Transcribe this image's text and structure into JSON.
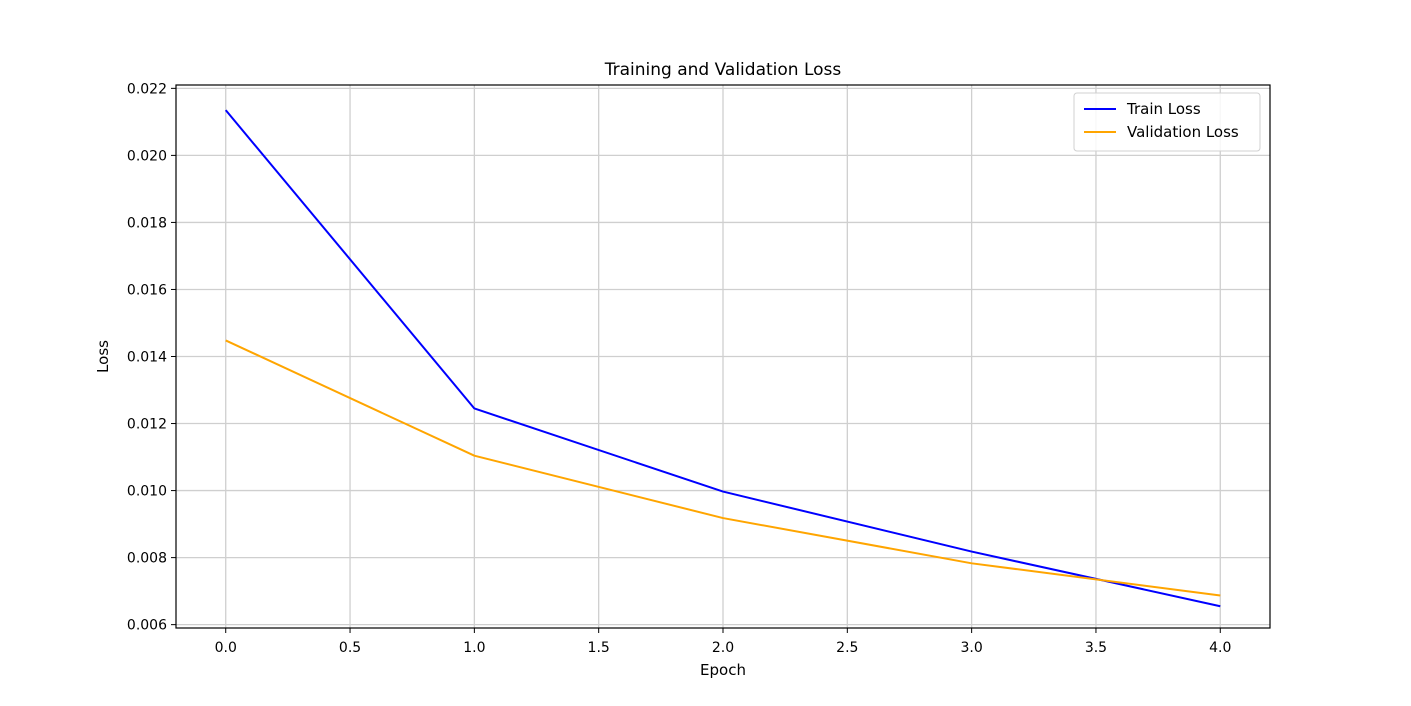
{
  "chart_data": {
    "type": "line",
    "title": "Training and Validation Loss",
    "xlabel": "Epoch",
    "ylabel": "Loss",
    "x": [
      0,
      1,
      2,
      3,
      4
    ],
    "xlim": [
      -0.2,
      4.2
    ],
    "ylim": [
      0.0059,
      0.0221
    ],
    "xticks": [
      "0.0",
      "0.5",
      "1.0",
      "1.5",
      "2.0",
      "2.5",
      "3.0",
      "3.5",
      "4.0"
    ],
    "yticks": [
      "0.006",
      "0.008",
      "0.010",
      "0.012",
      "0.014",
      "0.016",
      "0.018",
      "0.020",
      "0.022"
    ],
    "grid": true,
    "legend_position": "top-right",
    "series": [
      {
        "name": "Train Loss",
        "color": "#0000ff",
        "values": [
          0.02135,
          0.01245,
          0.00997,
          0.00818,
          0.00655
        ]
      },
      {
        "name": "Validation Loss",
        "color": "#ffa500",
        "values": [
          0.01448,
          0.01104,
          0.00918,
          0.00783,
          0.00687
        ]
      }
    ]
  }
}
